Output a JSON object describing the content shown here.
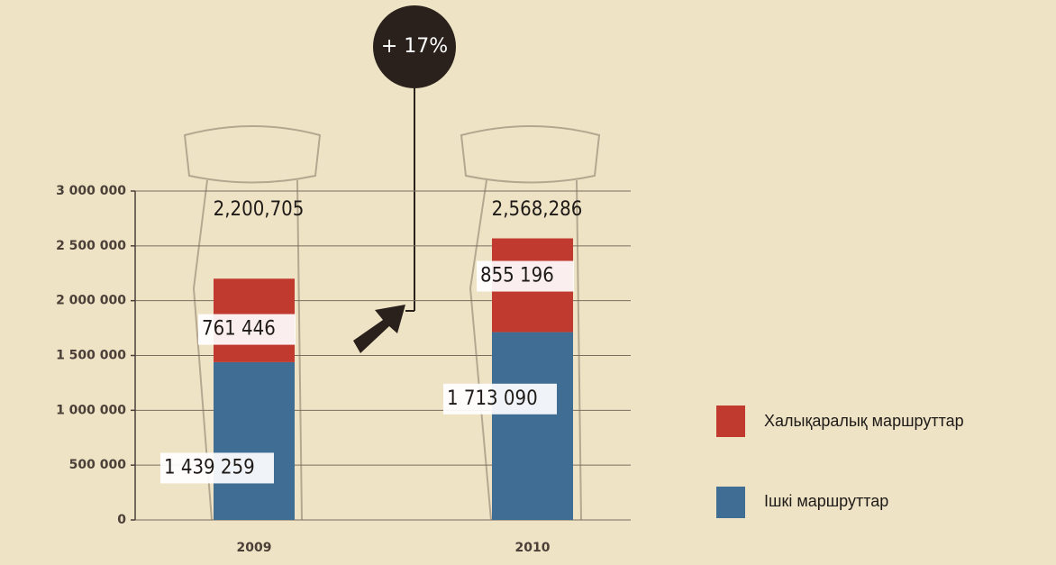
{
  "chart_data": {
    "type": "stacked_bar",
    "annotation": "+ 17%",
    "categories": [
      "2009",
      "2010"
    ],
    "series": [
      {
        "name": "Ішкі маршруттар",
        "color": "#3f6d94",
        "values": [
          1439259,
          1713090
        ],
        "value_labels": [
          "1 439 259",
          "1 713 090"
        ]
      },
      {
        "name": "Халықаралық маршруттар",
        "color": "#c13a30",
        "values": [
          761446,
          855196
        ],
        "value_labels": [
          "761 446",
          "855 196"
        ]
      }
    ],
    "totals": {
      "values": [
        2200705,
        2568286
      ],
      "value_labels": [
        "2,200,705",
        "2,568,286"
      ]
    },
    "ylim": [
      0,
      3000000
    ],
    "yticks": [
      0,
      {
        "value": 500000,
        "label": "500 000"
      },
      {
        "value": 1000000,
        "label": "1 000 000"
      },
      {
        "value": 1500000,
        "label": "1 500 000"
      },
      {
        "value": 2000000,
        "label": "2 000 000"
      },
      {
        "value": 2500000,
        "label": "2 500 000"
      },
      {
        "value": 3000000,
        "label": "3 000 000"
      }
    ],
    "grid": true
  }
}
